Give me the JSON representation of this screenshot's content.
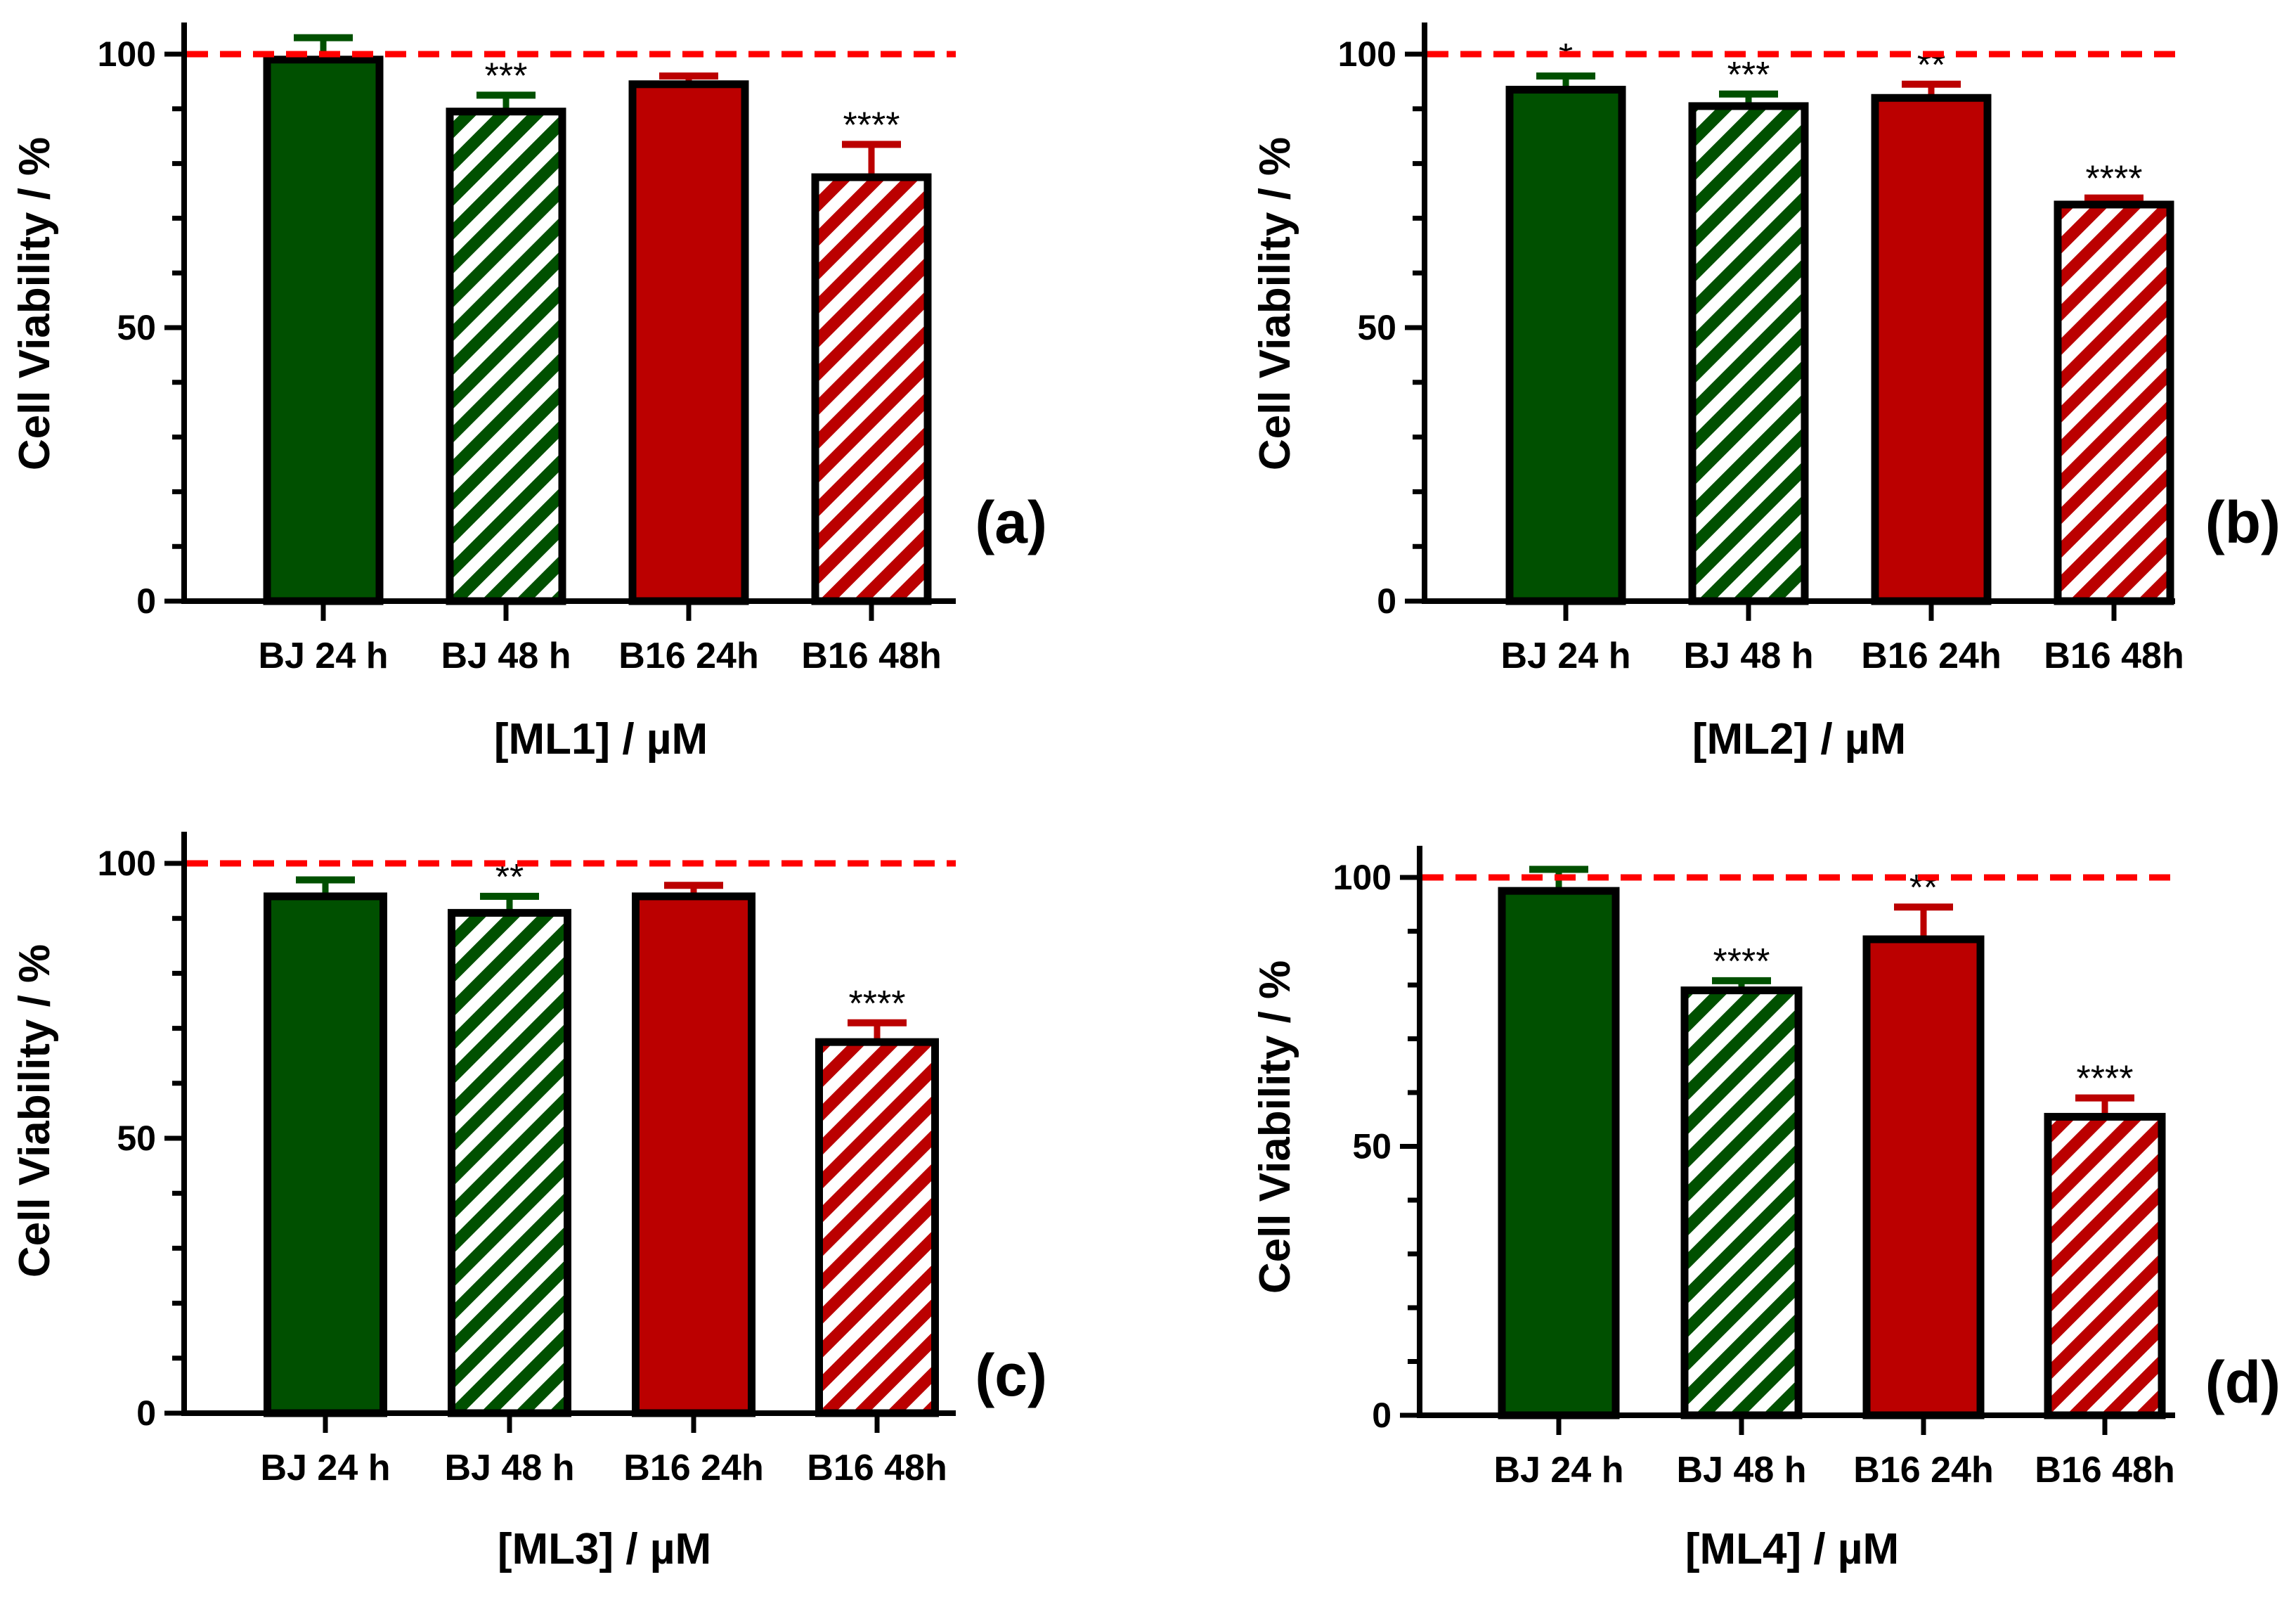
{
  "colors": {
    "bj": "#005000",
    "b16": "#bb0000",
    "ref_line": "#ff0000",
    "axis": "#000000"
  },
  "chart_data": [
    {
      "type": "bar",
      "panel_label": "(a)",
      "xlabel": "[ML1]  /  µM",
      "ylabel": "Cell Viability  /  %",
      "ylim": [
        0,
        100
      ],
      "yticks": [
        0,
        50,
        100
      ],
      "reference_line": 100,
      "categories": [
        "BJ 24 h",
        "BJ 48 h",
        "B16 24h",
        "B16 48h"
      ],
      "values": [
        99,
        89.5,
        94.5,
        77.5
      ],
      "errors": [
        4,
        3,
        1.5,
        6
      ],
      "significance": [
        "",
        "***",
        "",
        "****"
      ],
      "hatched": [
        false,
        true,
        false,
        true
      ]
    },
    {
      "type": "bar",
      "panel_label": "(b)",
      "xlabel": "[ML2]  /  µM",
      "ylabel": "Cell Viability  /  %",
      "ylim": [
        0,
        100
      ],
      "yticks": [
        0,
        50,
        100
      ],
      "reference_line": 100,
      "categories": [
        "BJ 24 h",
        "BJ 48 h",
        "B16 24h",
        "B16 48h"
      ],
      "values": [
        93.5,
        90.5,
        92,
        72.5
      ],
      "errors": [
        2.5,
        2.2,
        2.5,
        1.2
      ],
      "significance": [
        "*",
        "***",
        "**",
        "****"
      ],
      "hatched": [
        false,
        true,
        false,
        true
      ]
    },
    {
      "type": "bar",
      "panel_label": "(c)",
      "xlabel": "[ML3]  /  µM",
      "ylabel": "Cell Viability  /  %",
      "ylim": [
        0,
        100
      ],
      "yticks": [
        0,
        50,
        100
      ],
      "reference_line": 100,
      "categories": [
        "BJ 24 h",
        "BJ 48 h",
        "B16 24h",
        "B16 48h"
      ],
      "values": [
        94,
        91,
        94,
        67.5
      ],
      "errors": [
        3,
        3,
        2,
        3.5
      ],
      "significance": [
        "",
        "**",
        "",
        "****"
      ],
      "hatched": [
        false,
        true,
        false,
        true
      ]
    },
    {
      "type": "bar",
      "panel_label": "(d)",
      "xlabel": "[ML4]  /  µM",
      "ylabel": "Cell Viability  /  %",
      "ylim": [
        0,
        100
      ],
      "yticks": [
        0,
        50,
        100
      ],
      "reference_line": 100,
      "categories": [
        "BJ 24 h",
        "BJ 48 h",
        "B16 24h",
        "B16 48h"
      ],
      "values": [
        97.5,
        79,
        88.5,
        55.5
      ],
      "errors": [
        4,
        1.8,
        6,
        3.5
      ],
      "significance": [
        "",
        "****",
        "**",
        "****"
      ],
      "hatched": [
        false,
        true,
        false,
        true
      ]
    }
  ]
}
